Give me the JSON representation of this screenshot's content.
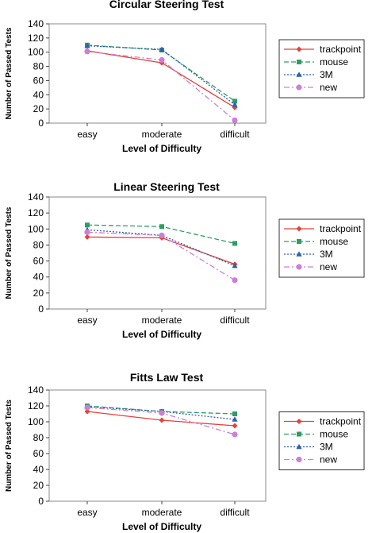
{
  "chart_data": [
    {
      "type": "line",
      "title": "Circular Steering Test",
      "xlabel": "Level of Difficulty",
      "ylabel": "Number of Passed Tests",
      "categories": [
        "easy",
        "moderate",
        "difficult"
      ],
      "ylim": [
        0,
        140
      ],
      "yticks": [
        0,
        20,
        40,
        60,
        80,
        100,
        120,
        140
      ],
      "legend": "right",
      "series": [
        {
          "name": "trackpoint",
          "values": [
            102,
            85,
            22
          ],
          "color": "#e8403a",
          "marker": "diamond",
          "dash": "solid"
        },
        {
          "name": "mouse",
          "values": [
            110,
            103,
            31
          ],
          "color": "#2e9e63",
          "marker": "square",
          "dash": "long-dash"
        },
        {
          "name": "3M",
          "values": [
            109,
            104,
            26
          ],
          "color": "#2f5fb5",
          "marker": "triangle",
          "dash": "dotted"
        },
        {
          "name": "new",
          "values": [
            101,
            89,
            4
          ],
          "color": "#cc7fd6",
          "marker": "circle",
          "dash": "dash-dot"
        }
      ]
    },
    {
      "type": "line",
      "title": "Linear Steering Test",
      "xlabel": "Level of Difficulty",
      "ylabel": "Number of Passed Tests",
      "categories": [
        "easy",
        "moderate",
        "difficult"
      ],
      "ylim": [
        0,
        140
      ],
      "yticks": [
        0,
        20,
        40,
        60,
        80,
        100,
        120,
        140
      ],
      "legend": "right",
      "series": [
        {
          "name": "trackpoint",
          "values": [
            90,
            89,
            56
          ],
          "color": "#e8403a",
          "marker": "diamond",
          "dash": "solid"
        },
        {
          "name": "mouse",
          "values": [
            105,
            103,
            82
          ],
          "color": "#2e9e63",
          "marker": "square",
          "dash": "long-dash"
        },
        {
          "name": "3M",
          "values": [
            99,
            92,
            54
          ],
          "color": "#2f5fb5",
          "marker": "triangle",
          "dash": "dotted"
        },
        {
          "name": "new",
          "values": [
            96,
            92,
            36
          ],
          "color": "#cc7fd6",
          "marker": "circle",
          "dash": "dash-dot"
        }
      ]
    },
    {
      "type": "line",
      "title": "Fitts Law Test",
      "xlabel": "Level of Difficulty",
      "ylabel": "Number of Passed Tests",
      "categories": [
        "easy",
        "moderate",
        "difficult"
      ],
      "ylim": [
        0,
        140
      ],
      "yticks": [
        0,
        20,
        40,
        60,
        80,
        100,
        120,
        140
      ],
      "legend": "right",
      "series": [
        {
          "name": "trackpoint",
          "values": [
            113,
            102,
            95
          ],
          "color": "#e8403a",
          "marker": "diamond",
          "dash": "solid"
        },
        {
          "name": "mouse",
          "values": [
            120,
            113,
            110
          ],
          "color": "#2e9e63",
          "marker": "square",
          "dash": "long-dash"
        },
        {
          "name": "3M",
          "values": [
            119,
            113,
            103
          ],
          "color": "#2f5fb5",
          "marker": "triangle",
          "dash": "dotted"
        },
        {
          "name": "new",
          "values": [
            118,
            111,
            84
          ],
          "color": "#cc7fd6",
          "marker": "circle",
          "dash": "dash-dot"
        }
      ]
    }
  ]
}
